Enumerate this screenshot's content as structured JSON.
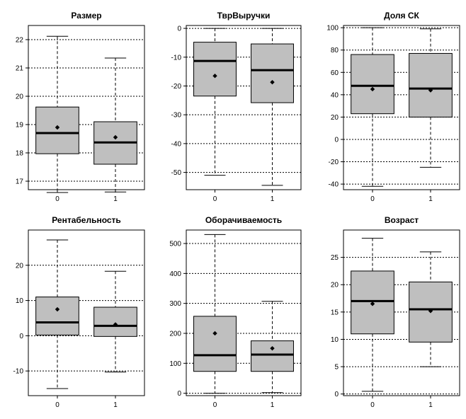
{
  "chart_data": [
    {
      "type": "boxplot",
      "title": "Размер",
      "categories": [
        "0",
        "1"
      ],
      "ylim": [
        16.7,
        22.5
      ],
      "yticks": [
        17,
        18,
        19,
        20,
        21,
        22
      ],
      "grid": true,
      "boxes": [
        {
          "category": "0",
          "min": 16.6,
          "q1": 17.97,
          "median": 18.7,
          "q3": 19.62,
          "max": 22.12,
          "mean": 18.9
        },
        {
          "category": "1",
          "min": 16.62,
          "q1": 17.6,
          "median": 18.37,
          "q3": 19.1,
          "max": 21.35,
          "mean": 18.55
        }
      ]
    },
    {
      "type": "boxplot",
      "title": "ТврВыручки",
      "categories": [
        "0",
        "1"
      ],
      "ylim": [
        -56,
        1
      ],
      "yticks": [
        0,
        -10,
        -20,
        -30,
        -40,
        -50
      ],
      "grid": true,
      "boxes": [
        {
          "category": "0",
          "min": -51,
          "q1": -23.5,
          "median": -11.3,
          "q3": -4.8,
          "max": 0,
          "mean": -16.5
        },
        {
          "category": "1",
          "min": -54.5,
          "q1": -25.8,
          "median": -14.5,
          "q3": -5.4,
          "max": 0,
          "mean": -18.7
        }
      ]
    },
    {
      "type": "boxplot",
      "title": "Доля СК",
      "categories": [
        "0",
        "1"
      ],
      "ylim": [
        -45,
        102
      ],
      "yticks": [
        100,
        80,
        60,
        40,
        20,
        0,
        -20,
        -40
      ],
      "grid": true,
      "boxes": [
        {
          "category": "0",
          "min": -42,
          "q1": 23,
          "median": 48,
          "q3": 76,
          "max": 100,
          "mean": 45
        },
        {
          "category": "1",
          "min": -25,
          "q1": 20,
          "median": 45.5,
          "q3": 77,
          "max": 99,
          "mean": 44
        }
      ]
    },
    {
      "type": "boxplot",
      "title": "Рентабельность",
      "categories": [
        "0",
        "1"
      ],
      "ylim": [
        -17,
        30
      ],
      "yticks": [
        20,
        10,
        0,
        -10
      ],
      "grid": true,
      "boxes": [
        {
          "category": "0",
          "min": -15,
          "q1": 0.2,
          "median": 3.8,
          "q3": 11,
          "max": 27.2,
          "mean": 7.5
        },
        {
          "category": "1",
          "min": -10.3,
          "q1": -0.2,
          "median": 2.8,
          "q3": 8.1,
          "max": 18.3,
          "mean": 3.2
        }
      ]
    },
    {
      "type": "boxplot",
      "title": "Оборачиваемость",
      "categories": [
        "0",
        "1"
      ],
      "ylim": [
        -8,
        545
      ],
      "yticks": [
        500,
        400,
        300,
        200,
        100,
        0
      ],
      "grid": true,
      "boxes": [
        {
          "category": "0",
          "min": 0,
          "q1": 73,
          "median": 127,
          "q3": 257,
          "max": 530,
          "mean": 200
        },
        {
          "category": "1",
          "min": 2,
          "q1": 73,
          "median": 129,
          "q3": 175,
          "max": 307,
          "mean": 150
        }
      ]
    },
    {
      "type": "boxplot",
      "title": "Возраст",
      "categories": [
        "0",
        "1"
      ],
      "ylim": [
        -0.3,
        30
      ],
      "yticks": [
        25,
        20,
        15,
        10,
        5,
        0
      ],
      "grid": true,
      "boxes": [
        {
          "category": "0",
          "min": 0.5,
          "q1": 11,
          "median": 17,
          "q3": 22.5,
          "max": 28.5,
          "mean": 16.5
        },
        {
          "category": "1",
          "min": 5,
          "q1": 9.5,
          "median": 15.5,
          "q3": 20.5,
          "max": 26,
          "mean": 15.2
        }
      ]
    }
  ]
}
